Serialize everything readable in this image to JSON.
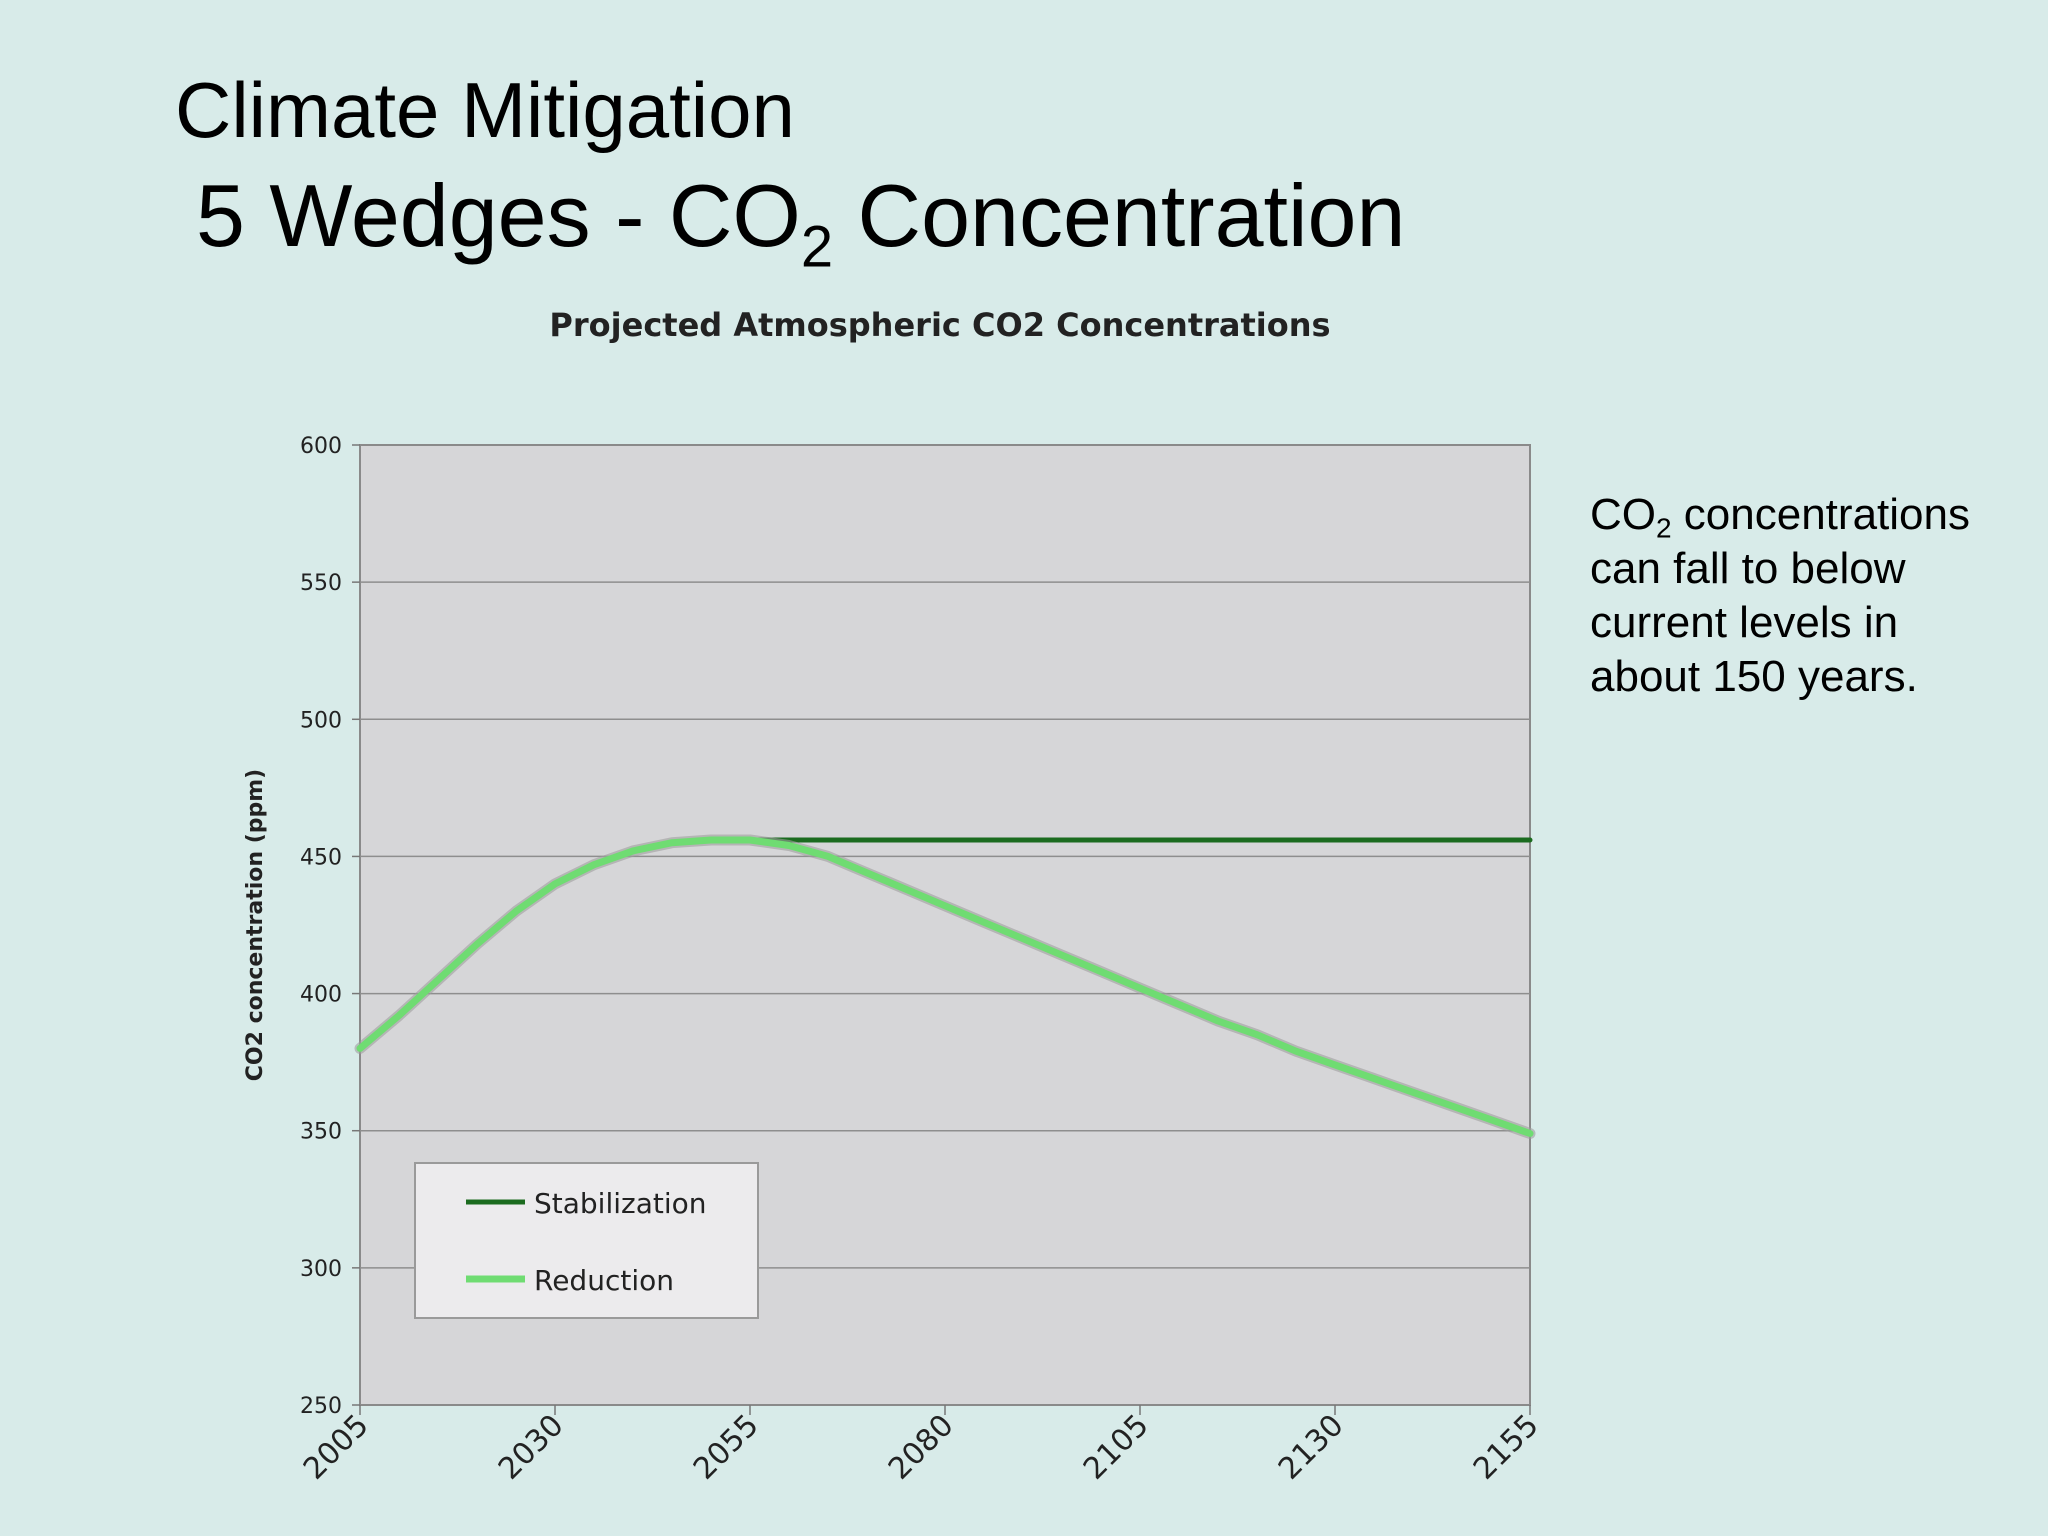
{
  "slide": {
    "title_line1": "Climate Mitigation",
    "title_line2_pre": "5 Wedges - CO",
    "title_line2_sub": "2",
    "title_line2_post": " Concentration",
    "note_pre": "CO",
    "note_sub": "2",
    "note_post": " concentrations can fall to below current levels in about 150 years."
  },
  "colors": {
    "background": "#d8ebe9",
    "plot_area": "#d6d6d8",
    "stabilization": "#1b6b1f",
    "reduction": "#6fdc72"
  },
  "chart_data": {
    "type": "line",
    "title": "Projected Atmospheric CO2 Concentrations",
    "xlabel": "",
    "ylabel": "CO2 concentration (ppm)",
    "xlim": [
      2005,
      2155
    ],
    "ylim": [
      250,
      600
    ],
    "xticks": [
      2005,
      2030,
      2055,
      2080,
      2105,
      2130,
      2155
    ],
    "yticks": [
      250,
      300,
      350,
      400,
      450,
      500,
      550,
      600
    ],
    "grid": true,
    "legend": "bottom-left",
    "series": [
      {
        "name": "Stabilization",
        "x": [
          2005,
          2010,
          2015,
          2020,
          2025,
          2030,
          2035,
          2040,
          2045,
          2050,
          2055,
          2060,
          2080,
          2105,
          2130,
          2155
        ],
        "values": [
          380,
          392,
          405,
          418,
          430,
          440,
          447,
          452,
          455,
          456,
          456,
          456,
          456,
          456,
          456,
          456
        ]
      },
      {
        "name": "Reduction",
        "x": [
          2005,
          2010,
          2015,
          2020,
          2025,
          2030,
          2035,
          2040,
          2045,
          2050,
          2055,
          2060,
          2065,
          2070,
          2075,
          2080,
          2085,
          2090,
          2095,
          2100,
          2105,
          2110,
          2115,
          2120,
          2125,
          2130,
          2135,
          2140,
          2145,
          2150,
          2155
        ],
        "values": [
          380,
          392,
          405,
          418,
          430,
          440,
          447,
          452,
          455,
          456,
          456,
          454,
          450,
          444,
          438,
          432,
          426,
          420,
          414,
          408,
          402,
          396,
          390,
          385,
          379,
          374,
          369,
          364,
          359,
          354,
          349
        ]
      }
    ]
  }
}
